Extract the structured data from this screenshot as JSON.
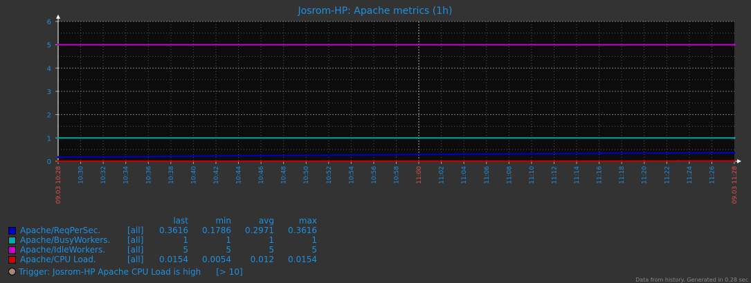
{
  "chart_data": {
    "type": "line",
    "title": "Josrom-HP: Apache metrics (1h)",
    "ylim": [
      0,
      6
    ],
    "yticks": [
      "0",
      "1",
      "2",
      "3",
      "4",
      "5",
      "6"
    ],
    "x_start_label": "09.03 10:28",
    "x_end_label": "09.03 11:28",
    "x_tick_labels": [
      "10:30",
      "10:32",
      "10:34",
      "10:36",
      "10:38",
      "10:40",
      "10:42",
      "10:44",
      "10:46",
      "10:48",
      "10:50",
      "10:52",
      "10:54",
      "10:56",
      "10:58",
      "11:00",
      "11:02",
      "11:04",
      "11:06",
      "11:08",
      "11:10",
      "11:12",
      "11:14",
      "11:16",
      "11:18",
      "11:20",
      "11:22",
      "11:24",
      "11:26"
    ],
    "highlight_tick": "11:00",
    "grid": true,
    "series": [
      {
        "name": "Apache/ReqPerSec.",
        "color": "#0000cc",
        "x_minutes": [
          0,
          6,
          12,
          18,
          24,
          30,
          36,
          42,
          48,
          54,
          60
        ],
        "y": [
          0.18,
          0.19,
          0.22,
          0.24,
          0.26,
          0.28,
          0.3,
          0.32,
          0.34,
          0.35,
          0.3616
        ]
      },
      {
        "name": "Apache/BusyWorkers.",
        "color": "#00aaaa",
        "x_minutes": [
          0,
          60
        ],
        "y": [
          1,
          1
        ]
      },
      {
        "name": "Apache/IdleWorkers.",
        "color": "#cc00cc",
        "x_minutes": [
          0,
          60
        ],
        "y": [
          5,
          5
        ]
      },
      {
        "name": "Apache/CPU Load.",
        "color": "#cc0000",
        "x_minutes": [
          0,
          50,
          52,
          55,
          58,
          60
        ],
        "y": [
          0.005,
          0.006,
          0.01,
          0.012,
          0.014,
          0.0154
        ]
      }
    ]
  },
  "legend": {
    "headers": {
      "last": "last",
      "min": "min",
      "avg": "avg",
      "max": "max"
    },
    "rows": [
      {
        "name": "Apache/ReqPerSec.",
        "func": "[all]",
        "last": "0.3616",
        "min": "0.1786",
        "avg": "0.2971",
        "max": "0.3616",
        "color": "#0000cc"
      },
      {
        "name": "Apache/BusyWorkers.",
        "func": "[all]",
        "last": "1",
        "min": "1",
        "avg": "1",
        "max": "1",
        "color": "#00aaaa"
      },
      {
        "name": "Apache/IdleWorkers.",
        "func": "[all]",
        "last": "5",
        "min": "5",
        "avg": "5",
        "max": "5",
        "color": "#cc00cc"
      },
      {
        "name": "Apache/CPU Load.",
        "func": "[all]",
        "last": "0.0154",
        "min": "0.0054",
        "avg": "0.012",
        "max": "0.0154",
        "color": "#cc0000"
      }
    ]
  },
  "trigger": {
    "label": "Trigger: Josrom-HP Apache CPU Load is high",
    "threshold": "[> 10]",
    "color": "#aa8877"
  },
  "footer": {
    "text": "Data from history. Generated in 0.28 sec"
  }
}
